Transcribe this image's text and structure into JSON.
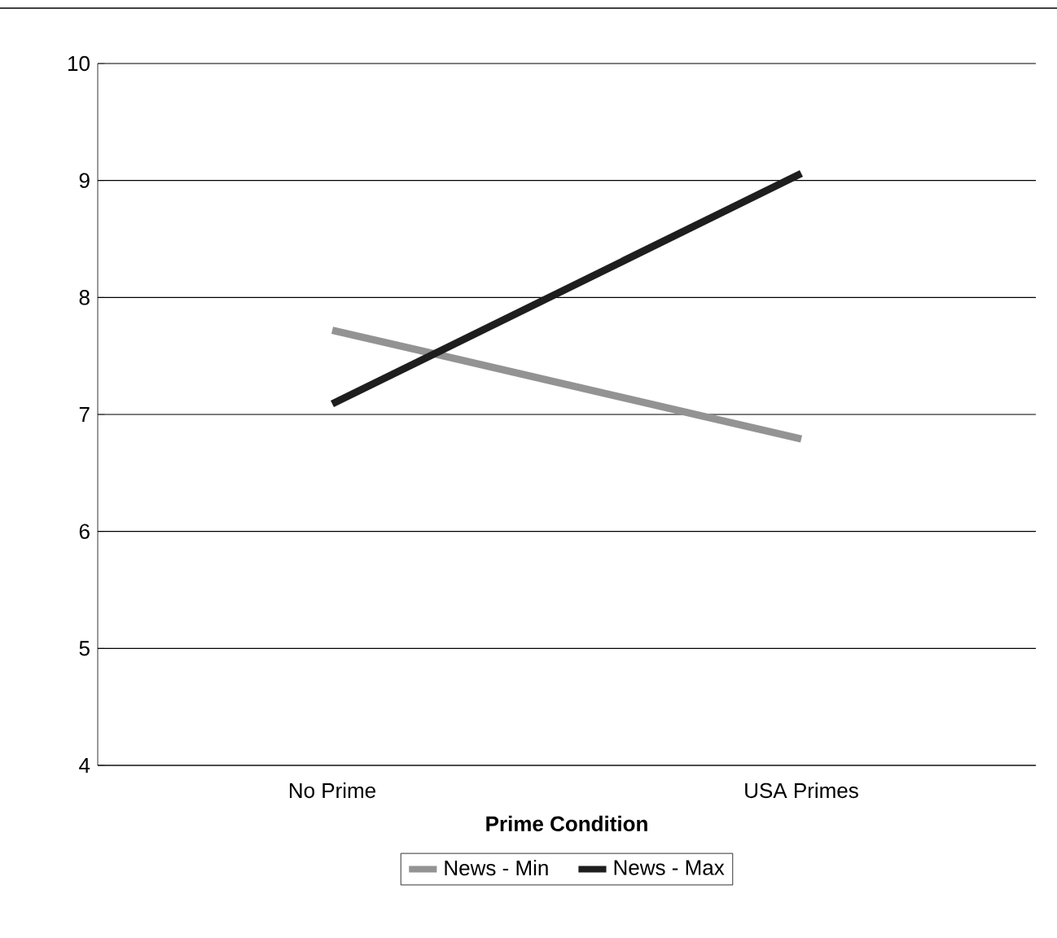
{
  "chart_data": {
    "type": "line",
    "xlabel": "Prime Condition",
    "categories": [
      "No Prime",
      "USA Primes"
    ],
    "series": [
      {
        "name": "News - Min",
        "color": "#939393",
        "values": [
          7.72,
          6.79
        ]
      },
      {
        "name": "News - Max",
        "color": "#1e1e1e",
        "values": [
          7.09,
          9.06
        ]
      }
    ],
    "ylim": [
      4,
      10
    ],
    "yticks": [
      4,
      5,
      6,
      7,
      8,
      9,
      10
    ],
    "grid": "y",
    "legend": "bottom",
    "marker": "none",
    "line_style": "solid"
  }
}
